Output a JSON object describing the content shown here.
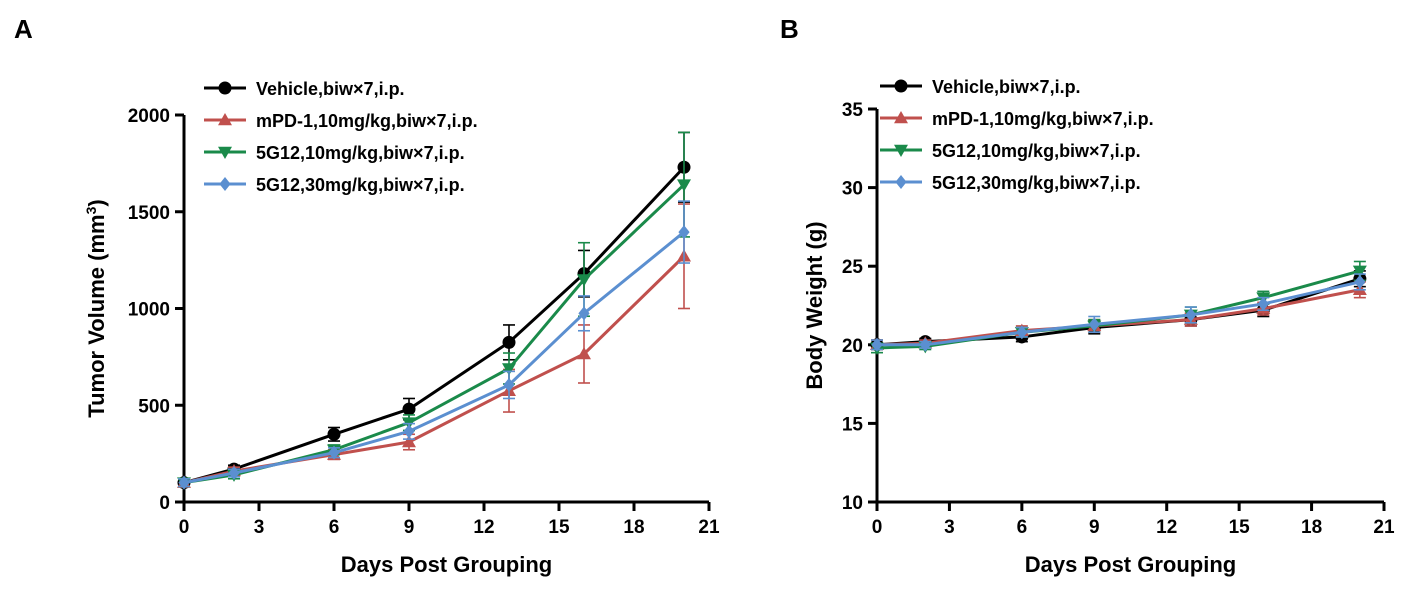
{
  "chart_data": [
    {
      "panel": "A",
      "type": "line",
      "xlabel": "Days Post Grouping",
      "ylabel": "Tumor Volume (mm",
      "ylabel_sup": "3",
      "ylabel_close": ")",
      "xlim": [
        0,
        21
      ],
      "ylim": [
        0,
        2000
      ],
      "xticks": [
        0,
        3,
        6,
        9,
        12,
        15,
        18,
        21
      ],
      "yticks": [
        0,
        500,
        1000,
        1500,
        2000
      ],
      "legend_position": "top-left",
      "series": [
        {
          "name": "Vehicle,biw×7,i.p.",
          "color": "#000000",
          "marker": "circle",
          "x": [
            0,
            2,
            6,
            9,
            13,
            16,
            20
          ],
          "y": [
            100,
            170,
            350,
            480,
            825,
            1180,
            1730
          ],
          "err": [
            20,
            20,
            35,
            55,
            90,
            120,
            180
          ]
        },
        {
          "name": "mPD-1,10mg/kg,biw×7,i.p.",
          "color": "#c0504d",
          "marker": "triangle-up",
          "x": [
            0,
            2,
            6,
            9,
            13,
            16,
            20
          ],
          "y": [
            100,
            160,
            245,
            310,
            575,
            765,
            1270
          ],
          "err": [
            20,
            20,
            25,
            40,
            110,
            150,
            270
          ]
        },
        {
          "name": "5G12,10mg/kg,biw×7,i.p.",
          "color": "#1a8a4a",
          "marker": "triangle-down",
          "x": [
            0,
            2,
            6,
            9,
            13,
            16,
            20
          ],
          "y": [
            100,
            140,
            270,
            410,
            690,
            1150,
            1640
          ],
          "err": [
            20,
            20,
            25,
            40,
            80,
            190,
            270
          ]
        },
        {
          "name": "5G12,30mg/kg,biw×7,i.p.",
          "color": "#5b8fd0",
          "marker": "diamond",
          "x": [
            0,
            2,
            6,
            9,
            13,
            16,
            20
          ],
          "y": [
            100,
            150,
            255,
            365,
            605,
            975,
            1395
          ],
          "err": [
            20,
            20,
            25,
            40,
            70,
            90,
            160
          ]
        }
      ]
    },
    {
      "panel": "B",
      "type": "line",
      "xlabel": "Days Post Grouping",
      "ylabel": "Body Weight (g)",
      "xlim": [
        0,
        21
      ],
      "ylim": [
        10,
        35
      ],
      "xticks": [
        0,
        3,
        6,
        9,
        12,
        15,
        18,
        21
      ],
      "yticks": [
        10,
        15,
        20,
        25,
        30,
        35
      ],
      "legend_position": "top-left",
      "series": [
        {
          "name": "Vehicle,biw×7,i.p.",
          "color": "#000000",
          "marker": "circle",
          "x": [
            0,
            2,
            6,
            9,
            13,
            16,
            20
          ],
          "y": [
            20.0,
            20.2,
            20.5,
            21.1,
            21.6,
            22.2,
            24.2
          ],
          "err": [
            0.3,
            0.2,
            0.3,
            0.4,
            0.4,
            0.4,
            0.5
          ]
        },
        {
          "name": "mPD-1,10mg/kg,biw×7,i.p.",
          "color": "#c0504d",
          "marker": "triangle-up",
          "x": [
            0,
            2,
            6,
            9,
            13,
            16,
            20
          ],
          "y": [
            20.0,
            20.1,
            20.9,
            21.2,
            21.6,
            22.3,
            23.5
          ],
          "err": [
            0.3,
            0.2,
            0.3,
            0.4,
            0.4,
            0.4,
            0.5
          ]
        },
        {
          "name": "5G12,10mg/kg,biw×7,i.p.",
          "color": "#1a8a4a",
          "marker": "triangle-down",
          "x": [
            0,
            2,
            6,
            9,
            13,
            16,
            20
          ],
          "y": [
            19.8,
            19.9,
            20.8,
            21.2,
            21.9,
            23.0,
            24.7
          ],
          "err": [
            0.3,
            0.2,
            0.3,
            0.4,
            0.5,
            0.4,
            0.6
          ]
        },
        {
          "name": "5G12,30mg/kg,biw×7,i.p.",
          "color": "#5b8fd0",
          "marker": "diamond",
          "x": [
            0,
            2,
            6,
            9,
            13,
            16,
            20
          ],
          "y": [
            20.0,
            20.0,
            20.8,
            21.3,
            21.9,
            22.6,
            24.0
          ],
          "err": [
            0.3,
            0.2,
            0.3,
            0.5,
            0.5,
            0.4,
            0.5
          ]
        }
      ]
    }
  ]
}
